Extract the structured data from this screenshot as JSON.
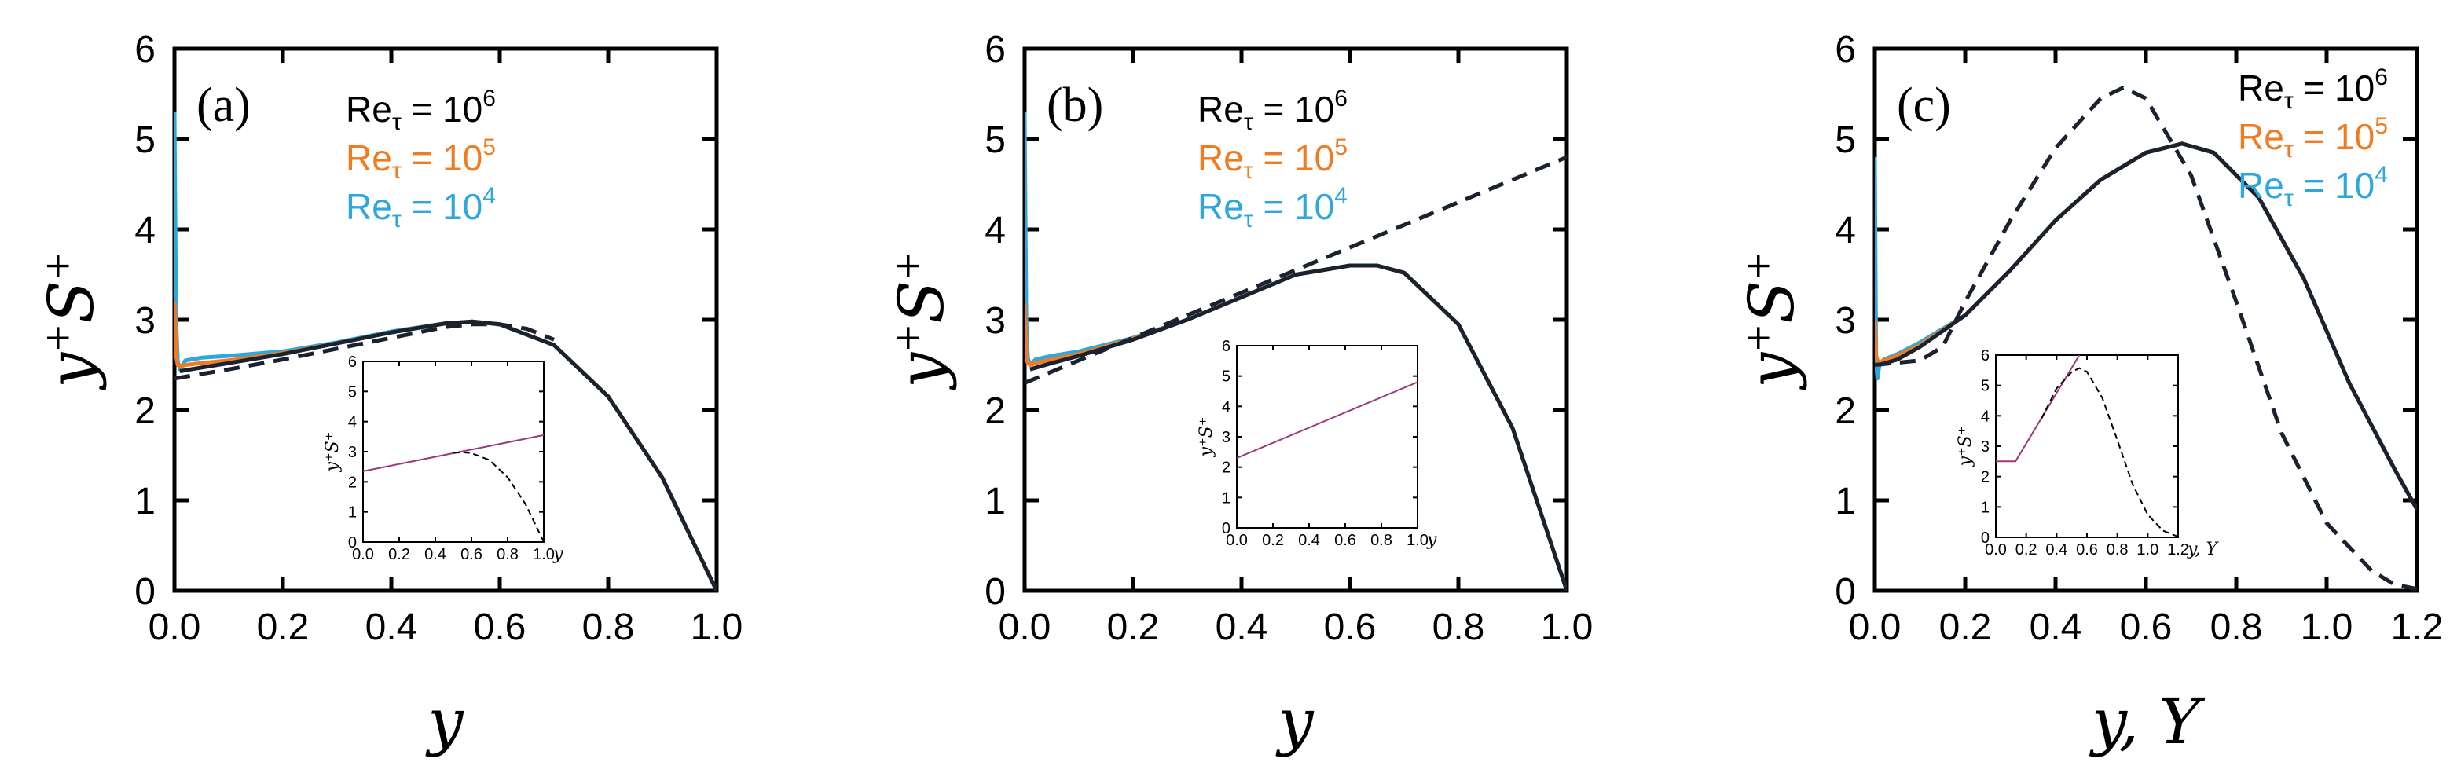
{
  "figure": {
    "background": "#ffffff"
  },
  "chart_data": [
    {
      "id": "a",
      "type": "line",
      "panel_label": "(a)",
      "xlabel": "y",
      "ylabel": "y+S+",
      "xlim": [
        0,
        1.0
      ],
      "ylim": [
        0,
        6
      ],
      "xticks": [
        "0.0",
        "0.2",
        "0.4",
        "0.6",
        "0.8",
        "1.0"
      ],
      "yticks": [
        "0",
        "1",
        "2",
        "3",
        "4",
        "5",
        "6"
      ],
      "legend": {
        "placement": "top-right",
        "entries": [
          {
            "base": "Re",
            "sub": "τ",
            "eq": " = 10",
            "exp": "6",
            "color": "#000000"
          },
          {
            "base": "Re",
            "sub": "τ",
            "eq": " = 10",
            "exp": "5",
            "color": "#f07b20"
          },
          {
            "base": "Re",
            "sub": "τ",
            "eq": " = 10",
            "exp": "4",
            "color": "#2ea8dc"
          }
        ]
      },
      "series": [
        {
          "name": "Re_tau = 10^4",
          "style": "solid",
          "color": "#2ea8dc",
          "x": [
            0,
            0.003,
            0.006,
            0.01,
            0.02,
            0.05,
            0.1,
            0.2,
            0.3,
            0.4,
            0.5,
            0.55,
            0.6,
            0.7,
            0.8,
            0.9,
            1.0
          ],
          "y": [
            5.3,
            3.0,
            2.55,
            2.45,
            2.55,
            2.58,
            2.6,
            2.65,
            2.75,
            2.87,
            2.96,
            2.98,
            2.95,
            2.72,
            2.15,
            1.25,
            0.0
          ]
        },
        {
          "name": "Re_tau = 10^5",
          "style": "solid",
          "color": "#f07b20",
          "x": [
            0,
            0.003,
            0.006,
            0.01,
            0.02,
            0.05,
            0.1,
            0.2,
            0.3,
            0.4,
            0.5,
            0.55,
            0.6,
            0.7,
            0.8,
            0.9,
            1.0
          ],
          "y": [
            3.2,
            2.6,
            2.5,
            2.48,
            2.5,
            2.52,
            2.55,
            2.63,
            2.74,
            2.86,
            2.96,
            2.98,
            2.95,
            2.72,
            2.15,
            1.25,
            0.0
          ]
        },
        {
          "name": "Re_tau = 10^6",
          "style": "solid",
          "color": "#1a2230",
          "x": [
            0.01,
            0.05,
            0.1,
            0.2,
            0.3,
            0.4,
            0.5,
            0.55,
            0.6,
            0.7,
            0.8,
            0.9,
            1.0
          ],
          "y": [
            2.43,
            2.47,
            2.52,
            2.62,
            2.74,
            2.86,
            2.96,
            2.98,
            2.95,
            2.72,
            2.15,
            1.25,
            0.0
          ]
        },
        {
          "name": "model",
          "style": "dashed",
          "color": "#1a2230",
          "x": [
            0,
            0.1,
            0.2,
            0.3,
            0.4,
            0.5,
            0.55,
            0.6,
            0.65,
            0.7
          ],
          "y": [
            2.35,
            2.45,
            2.56,
            2.68,
            2.8,
            2.92,
            2.95,
            2.95,
            2.9,
            2.78
          ]
        }
      ],
      "inset": {
        "xlabel": "y",
        "ylabel": "y+S+",
        "xlim": [
          0,
          1.0
        ],
        "ylim": [
          0,
          6
        ],
        "xticks": [
          "0.0",
          "0.2",
          "0.4",
          "0.6",
          "0.8",
          "1.0"
        ],
        "yticks": [
          "0",
          "1",
          "2",
          "3",
          "4",
          "5",
          "6"
        ],
        "series": [
          {
            "name": "inset-line",
            "style": "solid",
            "color": "#9b3a7a",
            "x": [
              0,
              1.0
            ],
            "y": [
              2.35,
              3.55
            ]
          },
          {
            "name": "inset-dashed",
            "style": "dashed",
            "color": "#000000",
            "x": [
              0.5,
              0.55,
              0.6,
              0.7,
              0.8,
              0.9,
              1.0
            ],
            "y": [
              2.96,
              2.98,
              2.95,
              2.72,
              2.15,
              1.25,
              0.0
            ]
          }
        ]
      }
    },
    {
      "id": "b",
      "type": "line",
      "panel_label": "(b)",
      "xlabel": "y",
      "ylabel": "y+S+",
      "xlim": [
        0,
        1.0
      ],
      "ylim": [
        0,
        6
      ],
      "xticks": [
        "0.0",
        "0.2",
        "0.4",
        "0.6",
        "0.8",
        "1.0"
      ],
      "yticks": [
        "0",
        "1",
        "2",
        "3",
        "4",
        "5",
        "6"
      ],
      "legend": {
        "placement": "top-right",
        "entries": [
          {
            "base": "Re",
            "sub": "τ",
            "eq": " = 10",
            "exp": "6",
            "color": "#000000"
          },
          {
            "base": "Re",
            "sub": "τ",
            "eq": " = 10",
            "exp": "5",
            "color": "#f07b20"
          },
          {
            "base": "Re",
            "sub": "τ",
            "eq": " = 10",
            "exp": "4",
            "color": "#2ea8dc"
          }
        ]
      },
      "series": [
        {
          "name": "Re_tau = 10^4",
          "style": "solid",
          "color": "#2ea8dc",
          "x": [
            0,
            0.003,
            0.006,
            0.01,
            0.02,
            0.05,
            0.1,
            0.2,
            0.3,
            0.4,
            0.5,
            0.6,
            0.65,
            0.7,
            0.8,
            0.9,
            1.0
          ],
          "y": [
            5.3,
            3.0,
            2.58,
            2.5,
            2.56,
            2.6,
            2.65,
            2.8,
            3.0,
            3.25,
            3.5,
            3.6,
            3.6,
            3.52,
            2.95,
            1.8,
            0.0
          ]
        },
        {
          "name": "Re_tau = 10^5",
          "style": "solid",
          "color": "#f07b20",
          "x": [
            0,
            0.003,
            0.006,
            0.01,
            0.02,
            0.05,
            0.1,
            0.2,
            0.3,
            0.4,
            0.5,
            0.6,
            0.65,
            0.7,
            0.8,
            0.9,
            1.0
          ],
          "y": [
            3.2,
            2.6,
            2.52,
            2.5,
            2.52,
            2.56,
            2.62,
            2.79,
            3.0,
            3.25,
            3.5,
            3.6,
            3.6,
            3.52,
            2.95,
            1.8,
            0.0
          ]
        },
        {
          "name": "Re_tau = 10^6",
          "style": "solid",
          "color": "#1a2230",
          "x": [
            0.01,
            0.05,
            0.1,
            0.2,
            0.3,
            0.4,
            0.5,
            0.6,
            0.65,
            0.7,
            0.8,
            0.9,
            1.0
          ],
          "y": [
            2.45,
            2.52,
            2.6,
            2.78,
            3.0,
            3.25,
            3.5,
            3.6,
            3.6,
            3.52,
            2.95,
            1.8,
            0.0
          ]
        },
        {
          "name": "model",
          "style": "dashed",
          "color": "#1a2230",
          "x": [
            0,
            1.0
          ],
          "y": [
            2.3,
            4.8
          ]
        }
      ],
      "inset": {
        "xlabel": "y",
        "ylabel": "y+S+",
        "xlim": [
          0,
          1.0
        ],
        "ylim": [
          0,
          6
        ],
        "xticks": [
          "0.0",
          "0.2",
          "0.4",
          "0.6",
          "0.8",
          "1.0"
        ],
        "yticks": [
          "0",
          "1",
          "2",
          "3",
          "4",
          "5",
          "6"
        ],
        "series": [
          {
            "name": "inset-line",
            "style": "solid",
            "color": "#9b3a7a",
            "x": [
              0,
              1.0
            ],
            "y": [
              2.3,
              4.8
            ]
          }
        ]
      }
    },
    {
      "id": "c",
      "type": "line",
      "panel_label": "(c)",
      "xlabel": "y, Y",
      "ylabel": "y+S+",
      "xlim": [
        0,
        1.2
      ],
      "ylim": [
        0,
        6
      ],
      "xticks": [
        "0.0",
        "0.2",
        "0.4",
        "0.6",
        "0.8",
        "1.0",
        "1.2"
      ],
      "yticks": [
        "0",
        "1",
        "2",
        "3",
        "4",
        "5",
        "6"
      ],
      "legend": {
        "placement": "top-right",
        "entries": [
          {
            "base": "Re",
            "sub": "τ",
            "eq": " = 10",
            "exp": "6",
            "color": "#000000"
          },
          {
            "base": "Re",
            "sub": "τ",
            "eq": " = 10",
            "exp": "5",
            "color": "#f07b20"
          },
          {
            "base": "Re",
            "sub": "τ",
            "eq": " = 10",
            "exp": "4",
            "color": "#2ea8dc"
          }
        ]
      },
      "series": [
        {
          "name": "Re_tau = 10^4",
          "style": "solid",
          "color": "#2ea8dc",
          "x": [
            0,
            0.003,
            0.006,
            0.01,
            0.02,
            0.05,
            0.1,
            0.2,
            0.3,
            0.4,
            0.5,
            0.6,
            0.68,
            0.75,
            0.85,
            0.95,
            1.05,
            1.15,
            1.2
          ],
          "y": [
            4.8,
            2.5,
            2.35,
            2.5,
            2.56,
            2.62,
            2.75,
            3.05,
            3.55,
            4.1,
            4.55,
            4.85,
            4.95,
            4.85,
            4.35,
            3.45,
            2.3,
            1.35,
            0.9
          ]
        },
        {
          "name": "Re_tau = 10^5",
          "style": "solid",
          "color": "#f07b20",
          "x": [
            0,
            0.003,
            0.006,
            0.01,
            0.02,
            0.05,
            0.1,
            0.2,
            0.3,
            0.4,
            0.5,
            0.6,
            0.68,
            0.75,
            0.85,
            0.95,
            1.05,
            1.15,
            1.2
          ],
          "y": [
            3.0,
            2.6,
            2.55,
            2.52,
            2.55,
            2.6,
            2.72,
            3.05,
            3.55,
            4.1,
            4.55,
            4.85,
            4.95,
            4.85,
            4.35,
            3.45,
            2.3,
            1.35,
            0.9
          ]
        },
        {
          "name": "Re_tau = 10^6",
          "style": "solid",
          "color": "#1a2230",
          "x": [
            0.01,
            0.05,
            0.1,
            0.2,
            0.3,
            0.4,
            0.5,
            0.6,
            0.68,
            0.75,
            0.85,
            0.95,
            1.05,
            1.15,
            1.2
          ],
          "y": [
            2.5,
            2.56,
            2.7,
            3.05,
            3.55,
            4.1,
            4.55,
            4.85,
            4.95,
            4.85,
            4.35,
            3.45,
            2.3,
            1.35,
            0.9
          ]
        },
        {
          "name": "model",
          "style": "dashed",
          "color": "#1a2230",
          "x": [
            0,
            0.1,
            0.15,
            0.2,
            0.3,
            0.4,
            0.5,
            0.55,
            0.6,
            0.7,
            0.8,
            0.9,
            1.0,
            1.1,
            1.15,
            1.2
          ],
          "y": [
            2.5,
            2.55,
            2.7,
            3.2,
            4.1,
            4.9,
            5.45,
            5.57,
            5.45,
            4.6,
            3.2,
            1.75,
            0.75,
            0.22,
            0.07,
            0.02
          ]
        }
      ],
      "inset": {
        "xlabel": "y, Y",
        "ylabel": "y+S+",
        "xlim": [
          0,
          1.2
        ],
        "ylim": [
          0,
          6
        ],
        "xticks": [
          "0.0",
          "0.2",
          "0.4",
          "0.6",
          "0.8",
          "1.0",
          "1.2"
        ],
        "yticks": [
          "0",
          "1",
          "2",
          "3",
          "4",
          "5",
          "6"
        ],
        "series": [
          {
            "name": "inset-line",
            "style": "solid",
            "color": "#9b3a7a",
            "x": [
              0,
              0.13,
              0.55
            ],
            "y": [
              2.5,
              2.5,
              6.0
            ]
          },
          {
            "name": "inset-dashed",
            "style": "dashed",
            "color": "#000000",
            "x": [
              0.3,
              0.4,
              0.5,
              0.55,
              0.6,
              0.7,
              0.8,
              0.9,
              1.0,
              1.1,
              1.2
            ],
            "y": [
              3.9,
              4.9,
              5.45,
              5.57,
              5.45,
              4.6,
              3.2,
              1.75,
              0.75,
              0.22,
              0.02
            ]
          }
        ]
      }
    }
  ]
}
